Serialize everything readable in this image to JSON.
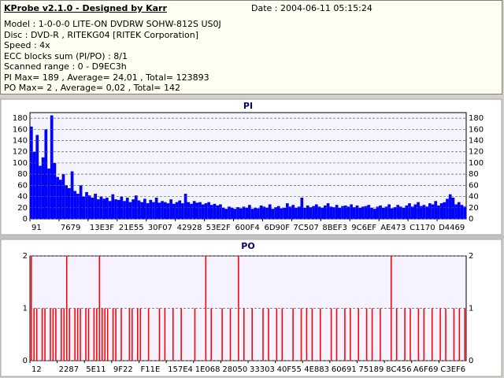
{
  "header": {
    "title": "KProbe v2.1.0 - Designed by Karr",
    "date": "Date : 2004-06-11 05:15:24",
    "lines": [
      "Model : 1-0-0-0 LITE-ON DVDRW SOHW-812S  US0J",
      "Disc : DVD-R , RITEKG04 [RITEK Corporation]",
      "Speed : 4x",
      "ECC blocks sum (PI/PO) : 8/1",
      "Scanned range : 0 - D9EC3h",
      "PI Max= 189 , Average= 24,01 , Total= 123893",
      "PO Max= 2 , Average= 0,02 , Total= 142"
    ]
  },
  "chart_data": [
    {
      "type": "bar",
      "title": "PI",
      "color": "#0000ff",
      "grid": true,
      "ylim": [
        0,
        190
      ],
      "yticks": [
        0,
        20,
        40,
        60,
        80,
        100,
        120,
        140,
        160,
        180
      ],
      "xlim": [
        0,
        150
      ],
      "xticks": [
        {
          "value": 0,
          "label": "91"
        },
        {
          "value": 10,
          "label": "7679"
        },
        {
          "value": 20,
          "label": "13E3F"
        },
        {
          "value": 30,
          "label": "21E55"
        },
        {
          "value": 40,
          "label": "30F07"
        },
        {
          "value": 50,
          "label": "42928"
        },
        {
          "value": 60,
          "label": "53E2F"
        },
        {
          "value": 70,
          "label": "600F4"
        },
        {
          "value": 80,
          "label": "6D90F"
        },
        {
          "value": 90,
          "label": "7C507"
        },
        {
          "value": 100,
          "label": "8BEF3"
        },
        {
          "value": 110,
          "label": "9C6EF"
        },
        {
          "value": 120,
          "label": "AE473"
        },
        {
          "value": 130,
          "label": "C1170"
        },
        {
          "value": 140,
          "label": "D4469"
        }
      ],
      "values": [
        165,
        120,
        150,
        95,
        110,
        160,
        90,
        185,
        100,
        75,
        70,
        80,
        60,
        55,
        85,
        50,
        45,
        60,
        40,
        48,
        42,
        38,
        45,
        35,
        40,
        36,
        38,
        32,
        44,
        35,
        34,
        40,
        32,
        38,
        30,
        35,
        42,
        33,
        30,
        36,
        28,
        34,
        30,
        38,
        29,
        32,
        30,
        28,
        35,
        27,
        30,
        33,
        28,
        45,
        30,
        27,
        32,
        29,
        30,
        26,
        28,
        30,
        25,
        27,
        24,
        26,
        20,
        18,
        22,
        20,
        18,
        21,
        19,
        22,
        20,
        25,
        18,
        20,
        19,
        24,
        22,
        20,
        26,
        18,
        21,
        23,
        19,
        20,
        28,
        22,
        25,
        20,
        22,
        38,
        20,
        24,
        21,
        23,
        26,
        22,
        20,
        24,
        28,
        22,
        21,
        25,
        20,
        23,
        24,
        22,
        26,
        21,
        24,
        20,
        22,
        23,
        25,
        20,
        18,
        22,
        24,
        20,
        22,
        26,
        19,
        21,
        25,
        22,
        20,
        24,
        28,
        22,
        26,
        30,
        23,
        25,
        22,
        28,
        26,
        32,
        24,
        28,
        30,
        36,
        44,
        38,
        26,
        30,
        25,
        22
      ]
    },
    {
      "type": "bar",
      "title": "PO",
      "color": "#ff0000",
      "grid": true,
      "ylim": [
        0,
        2
      ],
      "yticks": [
        0,
        1,
        2
      ],
      "xlim": [
        0,
        160
      ],
      "xticks": [
        {
          "value": 0,
          "label": "12"
        },
        {
          "value": 10,
          "label": "2287"
        },
        {
          "value": 20,
          "label": "5E11"
        },
        {
          "value": 30,
          "label": "9F22"
        },
        {
          "value": 40,
          "label": "F11E"
        },
        {
          "value": 50,
          "label": "157E4"
        },
        {
          "value": 60,
          "label": "1E068"
        },
        {
          "value": 70,
          "label": "28050"
        },
        {
          "value": 80,
          "label": "33303"
        },
        {
          "value": 90,
          "label": "40F55"
        },
        {
          "value": 100,
          "label": "4E883"
        },
        {
          "value": 110,
          "label": "60691"
        },
        {
          "value": 120,
          "label": "75189"
        },
        {
          "value": 130,
          "label": "8C456"
        },
        {
          "value": 140,
          "label": "A6F69"
        },
        {
          "value": 150,
          "label": "C3EF6"
        }
      ],
      "values": [
        2,
        1,
        1,
        0,
        1,
        1,
        0,
        1,
        1,
        1,
        0,
        1,
        1,
        2,
        1,
        0,
        1,
        1,
        1,
        0,
        1,
        1,
        0,
        1,
        1,
        2,
        1,
        1,
        1,
        0,
        1,
        1,
        0,
        1,
        0,
        0,
        1,
        1,
        0,
        1,
        1,
        0,
        0,
        1,
        0,
        0,
        0,
        1,
        0,
        1,
        0,
        0,
        1,
        0,
        0,
        1,
        0,
        0,
        0,
        0,
        1,
        0,
        0,
        0,
        2,
        0,
        1,
        0,
        0,
        0,
        1,
        0,
        0,
        1,
        0,
        0,
        2,
        0,
        1,
        0,
        0,
        1,
        0,
        0,
        0,
        1,
        0,
        1,
        0,
        0,
        1,
        0,
        1,
        0,
        0,
        0,
        1,
        0,
        0,
        1,
        0,
        1,
        0,
        1,
        0,
        0,
        1,
        0,
        0,
        0,
        1,
        0,
        1,
        0,
        0,
        1,
        0,
        1,
        0,
        0,
        1,
        0,
        0,
        1,
        0,
        1,
        0,
        0,
        1,
        0,
        0,
        0,
        2,
        0,
        1,
        0,
        0,
        1,
        0,
        1,
        0,
        0,
        1,
        0,
        1,
        0,
        0,
        1,
        0,
        0,
        1,
        0,
        1,
        0,
        0,
        1,
        0,
        1,
        0,
        1
      ]
    }
  ]
}
